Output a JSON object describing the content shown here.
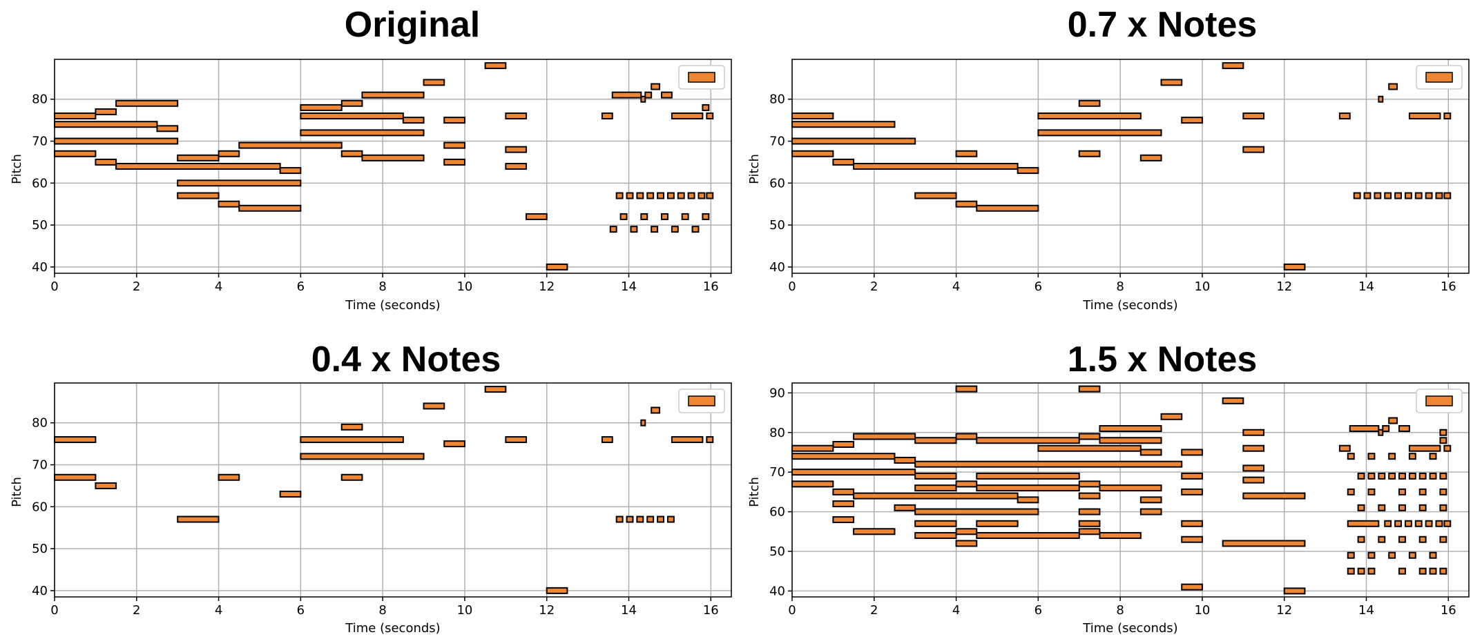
{
  "note_color": "#ED8735",
  "chart_data": [
    {
      "type": "piano-roll",
      "title": "Original",
      "xlabel": "Time (seconds)",
      "ylabel": "Pitch",
      "xlim": [
        0,
        16.5
      ],
      "ylim": [
        38.5,
        89.5
      ],
      "xticks": [
        0,
        2,
        4,
        6,
        8,
        10,
        12,
        14,
        16
      ],
      "yticks": [
        40,
        50,
        60,
        70,
        80
      ],
      "grid": true,
      "legend": "top-right",
      "notes": [
        [
          0,
          1,
          76
        ],
        [
          0,
          2.5,
          74
        ],
        [
          0,
          3,
          70
        ],
        [
          0,
          1,
          67
        ],
        [
          1,
          1.5,
          77
        ],
        [
          1,
          1.5,
          65
        ],
        [
          1.5,
          3,
          79
        ],
        [
          1.5,
          5.5,
          64
        ],
        [
          2.5,
          3,
          73
        ],
        [
          3,
          4,
          66
        ],
        [
          3,
          6,
          60
        ],
        [
          3,
          4,
          57
        ],
        [
          4,
          4.5,
          67
        ],
        [
          4,
          4.5,
          55
        ],
        [
          4.5,
          7,
          69
        ],
        [
          4.5,
          6,
          54
        ],
        [
          5.5,
          6,
          63
        ],
        [
          6,
          7,
          78
        ],
        [
          6,
          8.5,
          76
        ],
        [
          6,
          9,
          72
        ],
        [
          7,
          7.5,
          79
        ],
        [
          7,
          7.5,
          67
        ],
        [
          7.5,
          9,
          81
        ],
        [
          7.5,
          9,
          66
        ],
        [
          8.5,
          9,
          75
        ],
        [
          9,
          9.5,
          84
        ],
        [
          9.5,
          10,
          75
        ],
        [
          9.5,
          10,
          69
        ],
        [
          9.5,
          10,
          65
        ],
        [
          10.5,
          11,
          88
        ],
        [
          11,
          11.5,
          76
        ],
        [
          11,
          11.5,
          68
        ],
        [
          11,
          11.5,
          64
        ],
        [
          11.5,
          12,
          52
        ],
        [
          12,
          12.5,
          40
        ],
        [
          13.35,
          13.6,
          76
        ],
        [
          13.6,
          14.3,
          81
        ],
        [
          14.3,
          14.4,
          80
        ],
        [
          14.4,
          14.55,
          81
        ],
        [
          14.55,
          14.75,
          83
        ],
        [
          14.8,
          15.05,
          81
        ],
        [
          15.05,
          15.8,
          76
        ],
        [
          15.8,
          15.95,
          78
        ],
        [
          15.9,
          16.05,
          76
        ],
        [
          13.7,
          13.85,
          57
        ],
        [
          13.95,
          14.1,
          57
        ],
        [
          14.2,
          14.35,
          57
        ],
        [
          14.45,
          14.6,
          57
        ],
        [
          14.7,
          14.85,
          57
        ],
        [
          14.95,
          15.1,
          57
        ],
        [
          15.2,
          15.35,
          57
        ],
        [
          15.45,
          15.6,
          57
        ],
        [
          15.7,
          15.85,
          57
        ],
        [
          15.9,
          16.05,
          57
        ],
        [
          13.8,
          13.95,
          52
        ],
        [
          14.3,
          14.45,
          52
        ],
        [
          14.8,
          14.95,
          52
        ],
        [
          15.3,
          15.45,
          52
        ],
        [
          15.8,
          15.95,
          52
        ],
        [
          13.55,
          13.7,
          49
        ],
        [
          14.05,
          14.2,
          49
        ],
        [
          14.55,
          14.7,
          49
        ],
        [
          15.05,
          15.2,
          49
        ],
        [
          15.55,
          15.7,
          49
        ]
      ]
    },
    {
      "type": "piano-roll",
      "title": "0.7 x Notes",
      "xlabel": "Time (seconds)",
      "ylabel": "Pitch",
      "xlim": [
        0,
        16.5
      ],
      "ylim": [
        38.5,
        89.5
      ],
      "xticks": [
        0,
        2,
        4,
        6,
        8,
        10,
        12,
        14,
        16
      ],
      "yticks": [
        40,
        50,
        60,
        70,
        80
      ],
      "grid": true,
      "legend": "top-right",
      "notes": [
        [
          0,
          1,
          76
        ],
        [
          0,
          2.5,
          74
        ],
        [
          0,
          3,
          70
        ],
        [
          0,
          1,
          67
        ],
        [
          1,
          1.5,
          65
        ],
        [
          1.5,
          5.5,
          64
        ],
        [
          3,
          4,
          57
        ],
        [
          4,
          4.5,
          67
        ],
        [
          4,
          4.5,
          55
        ],
        [
          4.5,
          6,
          54
        ],
        [
          5.5,
          6,
          63
        ],
        [
          6,
          8.5,
          76
        ],
        [
          6,
          9,
          72
        ],
        [
          7,
          7.5,
          79
        ],
        [
          7,
          7.5,
          67
        ],
        [
          8.5,
          9,
          66
        ],
        [
          9,
          9.5,
          84
        ],
        [
          9.5,
          10,
          75
        ],
        [
          10.5,
          11,
          88
        ],
        [
          11,
          11.5,
          76
        ],
        [
          11,
          11.5,
          68
        ],
        [
          12,
          12.5,
          40
        ],
        [
          13.35,
          13.6,
          76
        ],
        [
          14.3,
          14.4,
          80
        ],
        [
          14.55,
          14.75,
          83
        ],
        [
          15.05,
          15.8,
          76
        ],
        [
          15.9,
          16.05,
          76
        ],
        [
          13.7,
          13.85,
          57
        ],
        [
          13.95,
          14.1,
          57
        ],
        [
          14.2,
          14.35,
          57
        ],
        [
          14.45,
          14.6,
          57
        ],
        [
          14.7,
          14.85,
          57
        ],
        [
          14.95,
          15.1,
          57
        ],
        [
          15.2,
          15.35,
          57
        ],
        [
          15.45,
          15.6,
          57
        ],
        [
          15.7,
          15.85,
          57
        ],
        [
          15.9,
          16.05,
          57
        ]
      ]
    },
    {
      "type": "piano-roll",
      "title": "0.4 x Notes",
      "xlabel": "Time (seconds)",
      "ylabel": "Pitch",
      "xlim": [
        0,
        16.5
      ],
      "ylim": [
        38.5,
        89.5
      ],
      "xticks": [
        0,
        2,
        4,
        6,
        8,
        10,
        12,
        14,
        16
      ],
      "yticks": [
        40,
        50,
        60,
        70,
        80
      ],
      "grid": true,
      "legend": "top-right",
      "notes": [
        [
          0,
          1,
          76
        ],
        [
          0,
          1,
          67
        ],
        [
          1,
          1.5,
          65
        ],
        [
          3,
          4,
          57
        ],
        [
          4,
          4.5,
          67
        ],
        [
          5.5,
          6,
          63
        ],
        [
          6,
          8.5,
          76
        ],
        [
          6,
          9,
          72
        ],
        [
          7,
          7.5,
          79
        ],
        [
          7,
          7.5,
          67
        ],
        [
          9,
          9.5,
          84
        ],
        [
          9.5,
          10,
          75
        ],
        [
          10.5,
          11,
          88
        ],
        [
          11,
          11.5,
          76
        ],
        [
          12,
          12.5,
          40
        ],
        [
          13.35,
          13.6,
          76
        ],
        [
          14.3,
          14.4,
          80
        ],
        [
          14.55,
          14.75,
          83
        ],
        [
          15.05,
          15.8,
          76
        ],
        [
          15.9,
          16.05,
          76
        ],
        [
          13.7,
          13.85,
          57
        ],
        [
          13.95,
          14.1,
          57
        ],
        [
          14.2,
          14.35,
          57
        ],
        [
          14.45,
          14.6,
          57
        ],
        [
          14.7,
          14.85,
          57
        ],
        [
          14.95,
          15.1,
          57
        ]
      ]
    },
    {
      "type": "piano-roll",
      "title": "1.5 x Notes",
      "xlabel": "Time (seconds)",
      "ylabel": "Pitch",
      "xlim": [
        0,
        16.5
      ],
      "ylim": [
        38.5,
        92.5
      ],
      "xticks": [
        0,
        2,
        4,
        6,
        8,
        10,
        12,
        14,
        16
      ],
      "yticks": [
        40,
        50,
        60,
        70,
        80,
        90
      ],
      "grid": true,
      "legend": "top-right",
      "notes": [
        [
          4,
          4.5,
          91
        ],
        [
          7,
          7.5,
          91
        ],
        [
          10.5,
          11,
          88
        ],
        [
          9,
          9.5,
          84
        ],
        [
          7.5,
          9,
          81
        ],
        [
          11,
          11.5,
          80
        ],
        [
          1.5,
          3,
          79
        ],
        [
          3,
          4,
          78
        ],
        [
          4,
          4.5,
          79
        ],
        [
          4.5,
          7,
          78
        ],
        [
          7,
          7.5,
          79
        ],
        [
          7.5,
          9,
          78
        ],
        [
          1,
          1.5,
          77
        ],
        [
          0,
          1,
          76
        ],
        [
          6,
          8.5,
          76
        ],
        [
          11,
          11.5,
          76
        ],
        [
          0,
          2.5,
          74
        ],
        [
          8.5,
          9,
          75
        ],
        [
          9.5,
          10,
          75
        ],
        [
          2.5,
          3,
          73
        ],
        [
          3,
          9.5,
          72
        ],
        [
          11,
          11.5,
          71
        ],
        [
          0,
          3,
          70
        ],
        [
          3,
          4,
          69
        ],
        [
          4.5,
          7,
          69
        ],
        [
          9.5,
          10,
          69
        ],
        [
          11,
          11.5,
          68
        ],
        [
          0,
          1,
          67
        ],
        [
          3,
          4,
          66
        ],
        [
          4,
          4.5,
          67
        ],
        [
          4.5,
          7,
          66
        ],
        [
          7,
          7.5,
          67
        ],
        [
          7.5,
          9,
          66
        ],
        [
          1,
          1.5,
          65
        ],
        [
          9.5,
          10,
          65
        ],
        [
          1.5,
          5.5,
          64
        ],
        [
          5.5,
          6,
          63
        ],
        [
          7,
          7.5,
          64
        ],
        [
          8.5,
          9,
          63
        ],
        [
          11,
          12.5,
          64
        ],
        [
          1,
          1.5,
          62
        ],
        [
          2.5,
          3,
          61
        ],
        [
          3,
          6,
          60
        ],
        [
          7,
          7.5,
          60
        ],
        [
          8.5,
          9,
          60
        ],
        [
          1,
          1.5,
          58
        ],
        [
          3,
          4,
          57
        ],
        [
          4.5,
          5.5,
          57
        ],
        [
          7,
          7.5,
          57
        ],
        [
          9.5,
          10,
          57
        ],
        [
          1.5,
          2.5,
          55
        ],
        [
          4,
          4.5,
          55
        ],
        [
          7,
          7.5,
          55
        ],
        [
          3,
          4,
          54
        ],
        [
          4.5,
          7,
          54
        ],
        [
          7.5,
          8.5,
          54
        ],
        [
          4,
          4.5,
          52
        ],
        [
          9.5,
          10,
          53
        ],
        [
          10.5,
          12.5,
          52
        ],
        [
          9.5,
          10,
          41
        ],
        [
          12,
          12.5,
          40
        ],
        [
          13.35,
          13.6,
          76
        ],
        [
          13.6,
          14.3,
          81
        ],
        [
          14.3,
          14.4,
          80
        ],
        [
          14.4,
          14.55,
          81
        ],
        [
          14.55,
          14.75,
          83
        ],
        [
          14.8,
          15.05,
          81
        ],
        [
          15.05,
          15.8,
          76
        ],
        [
          15.8,
          15.95,
          80
        ],
        [
          15.8,
          15.95,
          78
        ],
        [
          15.9,
          16.05,
          76
        ],
        [
          13.55,
          13.7,
          74
        ],
        [
          14.05,
          14.2,
          74
        ],
        [
          14.55,
          14.7,
          74
        ],
        [
          15.05,
          15.2,
          74
        ],
        [
          15.55,
          15.7,
          74
        ],
        [
          13.8,
          13.95,
          69
        ],
        [
          14.05,
          14.2,
          69
        ],
        [
          14.3,
          14.45,
          69
        ],
        [
          14.55,
          14.7,
          69
        ],
        [
          14.8,
          14.95,
          69
        ],
        [
          15.05,
          15.2,
          69
        ],
        [
          15.3,
          15.45,
          69
        ],
        [
          15.55,
          15.7,
          69
        ],
        [
          15.8,
          15.95,
          69
        ],
        [
          13.55,
          13.7,
          65
        ],
        [
          14.05,
          14.2,
          65
        ],
        [
          14.8,
          14.95,
          65
        ],
        [
          15.3,
          15.45,
          65
        ],
        [
          15.8,
          15.95,
          65
        ],
        [
          13.8,
          13.95,
          61
        ],
        [
          14.3,
          14.45,
          61
        ],
        [
          14.8,
          14.95,
          61
        ],
        [
          15.3,
          15.45,
          61
        ],
        [
          15.8,
          15.95,
          61
        ],
        [
          13.55,
          14.3,
          57
        ],
        [
          14.45,
          14.6,
          57
        ],
        [
          14.7,
          14.85,
          57
        ],
        [
          14.95,
          15.1,
          57
        ],
        [
          15.2,
          15.35,
          57
        ],
        [
          15.45,
          15.6,
          57
        ],
        [
          15.7,
          15.85,
          57
        ],
        [
          15.9,
          16.05,
          57
        ],
        [
          13.8,
          13.95,
          53
        ],
        [
          14.3,
          14.45,
          53
        ],
        [
          14.8,
          14.95,
          53
        ],
        [
          15.3,
          15.45,
          53
        ],
        [
          15.8,
          15.95,
          53
        ],
        [
          13.55,
          13.7,
          49
        ],
        [
          14.05,
          14.2,
          49
        ],
        [
          14.55,
          14.7,
          49
        ],
        [
          15.05,
          15.2,
          49
        ],
        [
          15.55,
          15.7,
          49
        ],
        [
          13.55,
          13.7,
          45
        ],
        [
          13.8,
          13.95,
          45
        ],
        [
          14.05,
          14.2,
          45
        ],
        [
          14.8,
          14.95,
          45
        ],
        [
          15.3,
          15.45,
          45
        ],
        [
          15.55,
          15.7,
          45
        ],
        [
          15.8,
          15.95,
          45
        ]
      ]
    }
  ]
}
